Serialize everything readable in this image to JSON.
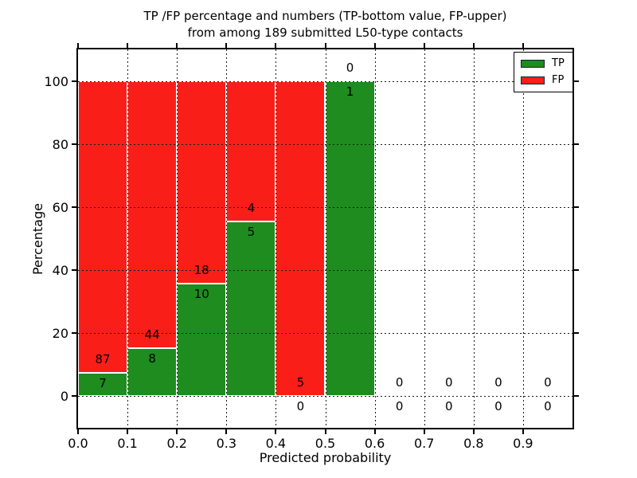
{
  "title": {
    "line1": "TP /FP percentage and numbers (TP-bottom value, FP-upper)",
    "line2": "from among 189 submitted L50-type contacts"
  },
  "chart_data": {
    "type": "bar",
    "stacked": true,
    "title": "TP /FP percentage and numbers (TP-bottom value, FP-upper) from among 189 submitted L50-type contacts",
    "xlabel": "Predicted probability",
    "ylabel": "Percentage",
    "xlim": [
      0.0,
      1.0
    ],
    "ylim": [
      -10,
      110
    ],
    "grid": "dotted, drawn over bars",
    "x_tick_labels": [
      "0.0",
      "0.1",
      "0.2",
      "0.3",
      "0.4",
      "0.5",
      "0.6",
      "0.7",
      "0.8",
      "0.9"
    ],
    "y_tick_labels": [
      "0",
      "20",
      "40",
      "60",
      "80",
      "100"
    ],
    "y_tick_values": [
      0,
      20,
      40,
      60,
      80,
      100
    ],
    "total_contacts": 189,
    "bins": [
      {
        "range": [
          0.0,
          0.1
        ],
        "tp": 7,
        "fp": 87
      },
      {
        "range": [
          0.1,
          0.2
        ],
        "tp": 8,
        "fp": 44
      },
      {
        "range": [
          0.2,
          0.3
        ],
        "tp": 10,
        "fp": 18
      },
      {
        "range": [
          0.3,
          0.4
        ],
        "tp": 5,
        "fp": 4
      },
      {
        "range": [
          0.4,
          0.5
        ],
        "tp": 0,
        "fp": 5
      },
      {
        "range": [
          0.5,
          0.6
        ],
        "tp": 1,
        "fp": 0
      },
      {
        "range": [
          0.6,
          0.7
        ],
        "tp": 0,
        "fp": 0
      },
      {
        "range": [
          0.7,
          0.8
        ],
        "tp": 0,
        "fp": 0
      },
      {
        "range": [
          0.8,
          0.9
        ],
        "tp": 0,
        "fp": 0
      },
      {
        "range": [
          0.9,
          1.0
        ],
        "tp": 0,
        "fp": 0
      }
    ],
    "series_note": "green TP segment stacked below red FP segment; bar heights are percentages tp/(tp+fp)*100 and fp/(tp+fp)*100; count numbers printed at the TP/FP boundary (TP below, FP above)",
    "colors": {
      "tp": "#1e8c1e",
      "fp": "#fa1e19"
    },
    "legend": {
      "position": "upper right",
      "entries": [
        {
          "label": "TP",
          "color": "#1e8c1e"
        },
        {
          "label": "FP",
          "color": "#fa1e19"
        }
      ]
    }
  }
}
